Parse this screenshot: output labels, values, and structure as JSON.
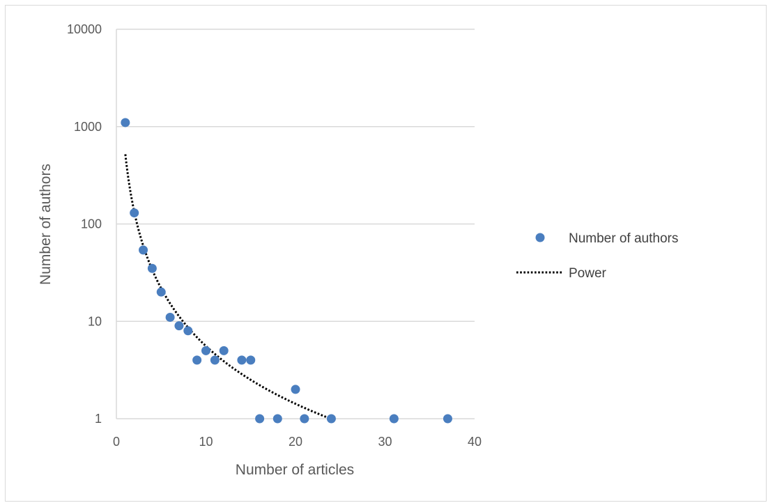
{
  "chart_data": {
    "type": "scatter",
    "title": "",
    "xlabel": "Number of articles",
    "ylabel": "Number of authors",
    "xlim": [
      0,
      40
    ],
    "ylim": [
      1,
      10000
    ],
    "yscale": "log",
    "grid": "horizontal",
    "legend_position": "right",
    "xticks": [
      "0",
      "10",
      "20",
      "30",
      "40"
    ],
    "yticks": [
      "1",
      "10",
      "100",
      "1000",
      "10000"
    ],
    "series": [
      {
        "name": "Number of authors",
        "kind": "scatter",
        "color": "#4a7ebf",
        "points": [
          {
            "x": 1,
            "y": 1100
          },
          {
            "x": 2,
            "y": 130
          },
          {
            "x": 3,
            "y": 54
          },
          {
            "x": 4,
            "y": 35
          },
          {
            "x": 5,
            "y": 20
          },
          {
            "x": 6,
            "y": 11
          },
          {
            "x": 7,
            "y": 9
          },
          {
            "x": 8,
            "y": 8
          },
          {
            "x": 9,
            "y": 4
          },
          {
            "x": 10,
            "y": 5
          },
          {
            "x": 11,
            "y": 4
          },
          {
            "x": 12,
            "y": 5
          },
          {
            "x": 14,
            "y": 4
          },
          {
            "x": 15,
            "y": 4
          },
          {
            "x": 16,
            "y": 1
          },
          {
            "x": 18,
            "y": 1
          },
          {
            "x": 20,
            "y": 2
          },
          {
            "x": 21,
            "y": 1
          },
          {
            "x": 24,
            "y": 1
          },
          {
            "x": 31,
            "y": 1
          },
          {
            "x": 37,
            "y": 1
          }
        ]
      },
      {
        "name": "Power",
        "kind": "trendline",
        "fit": "power",
        "color": "#000000",
        "coefficient": 520,
        "exponent": -1.97,
        "x_range": [
          1,
          24
        ]
      }
    ]
  }
}
